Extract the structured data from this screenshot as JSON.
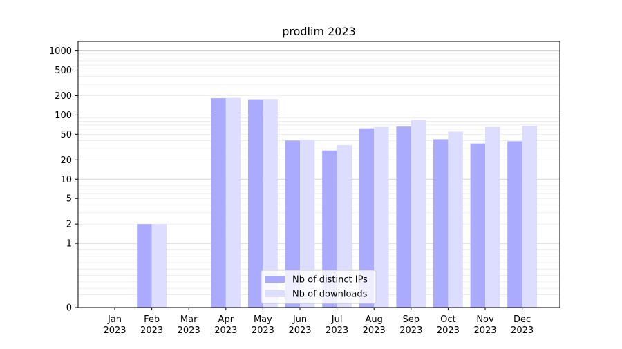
{
  "chart_data": {
    "type": "bar",
    "title": "prodlim 2023",
    "xlabel": "",
    "ylabel": "",
    "y_scale": "symlog",
    "ylim": [
      0,
      1400
    ],
    "grid": "horizontal",
    "legend_position": "bottom-center",
    "categories": [
      [
        "Jan",
        "2023"
      ],
      [
        "Feb",
        "2023"
      ],
      [
        "Mar",
        "2023"
      ],
      [
        "Apr",
        "2023"
      ],
      [
        "May",
        "2023"
      ],
      [
        "Jun",
        "2023"
      ],
      [
        "Jul",
        "2023"
      ],
      [
        "Aug",
        "2023"
      ],
      [
        "Sep",
        "2023"
      ],
      [
        "Oct",
        "2023"
      ],
      [
        "Nov",
        "2023"
      ],
      [
        "Dec",
        "2023"
      ]
    ],
    "y_ticks": [
      0,
      1,
      2,
      5,
      10,
      20,
      50,
      100,
      200,
      500,
      1000
    ],
    "series": [
      {
        "name": "Nb of distinct IPs",
        "color": "#aaaaff",
        "values": [
          0,
          2,
          0,
          183,
          176,
          40,
          28,
          62,
          66,
          42,
          36,
          39
        ]
      },
      {
        "name": "Nb of downloads",
        "color": "#ddddff",
        "values": [
          0,
          2,
          0,
          185,
          178,
          41,
          34,
          65,
          84,
          55,
          65,
          68
        ]
      }
    ]
  }
}
